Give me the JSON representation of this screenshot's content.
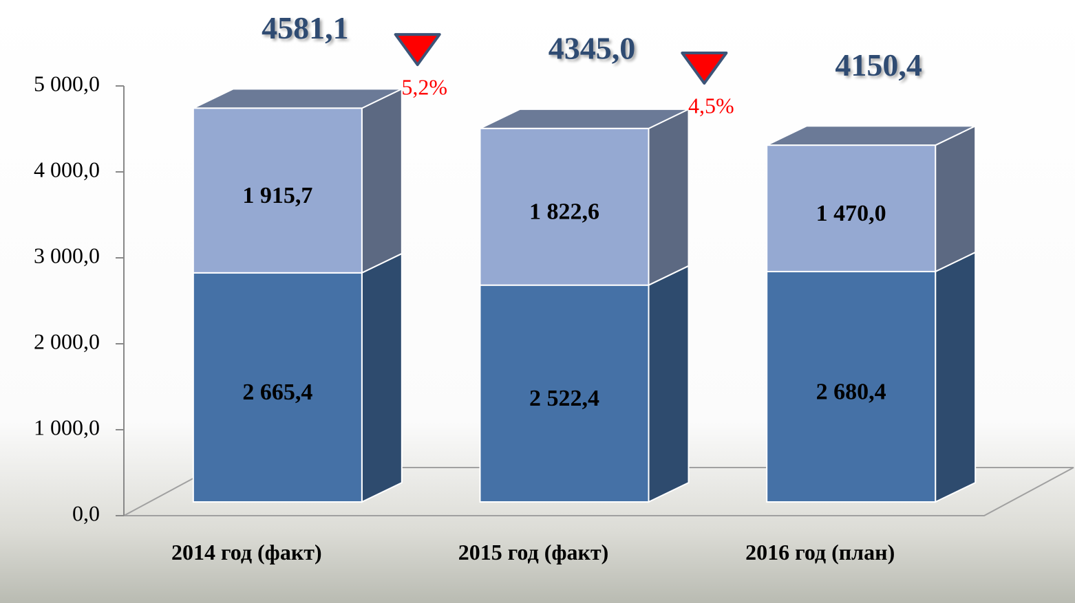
{
  "chart_data": {
    "type": "bar3d_stacked",
    "categories": [
      "2014 год (факт)",
      "2015 год (факт)",
      "2016 год (план)"
    ],
    "series": [
      {
        "color": "#4571a6",
        "values": [
          2665.4,
          2522.4,
          2680.4
        ],
        "value_labels": [
          "2 665,4",
          "2 522,4",
          "2 680,4"
        ]
      },
      {
        "color": "#95a9d2",
        "values": [
          1915.7,
          1822.6,
          1470.0
        ],
        "value_labels": [
          "1 915,7",
          "1 822,6",
          "1 470,0"
        ]
      }
    ],
    "totals": [
      4581.1,
      4345.0,
      4150.4
    ],
    "total_labels": [
      "4581,1",
      "4345,0",
      "4150,4"
    ],
    "changes": [
      5.2,
      4.5
    ],
    "change_labels": [
      "5,2%",
      "4,5%"
    ],
    "change_direction": "down",
    "ylim": [
      0,
      5000
    ],
    "yticks": [
      {
        "value": 0,
        "label": "0,0"
      },
      {
        "value": 1000,
        "label": "1 000,0"
      },
      {
        "value": 2000,
        "label": "2 000,0"
      },
      {
        "value": 3000,
        "label": "3 000,0"
      },
      {
        "value": 4000,
        "label": "4 000,0"
      },
      {
        "value": 5000,
        "label": "5 000,0"
      }
    ]
  }
}
